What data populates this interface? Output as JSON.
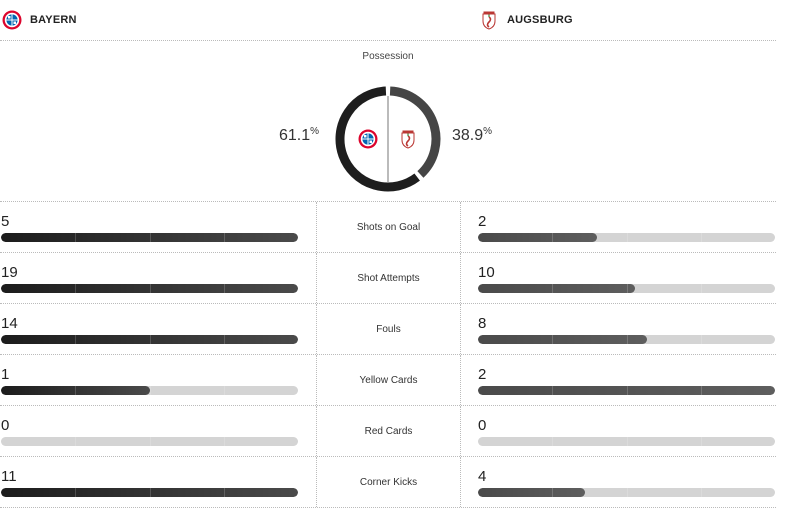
{
  "header": {
    "home": {
      "name": "BAYERN",
      "crest": "bayern-crest-icon"
    },
    "away": {
      "name": "AUGSBURG",
      "crest": "augsburg-crest-icon"
    }
  },
  "possession": {
    "title": "Possession",
    "home_value": "61.1",
    "away_value": "38.9",
    "unit": "%",
    "home_fraction": 0.611,
    "away_fraction": 0.389,
    "home_color": "#1e1e1e",
    "away_color": "#454545"
  },
  "stats": [
    {
      "label": "Shots on Goal",
      "home": "5",
      "away": "2",
      "home_fill": 1.0,
      "away_fill": 0.4
    },
    {
      "label": "Shot Attempts",
      "home": "19",
      "away": "10",
      "home_fill": 1.0,
      "away_fill": 0.53
    },
    {
      "label": "Fouls",
      "home": "14",
      "away": "8",
      "home_fill": 1.0,
      "away_fill": 0.57
    },
    {
      "label": "Yellow Cards",
      "home": "1",
      "away": "2",
      "home_fill": 0.5,
      "away_fill": 1.0
    },
    {
      "label": "Red Cards",
      "home": "0",
      "away": "0",
      "home_fill": 0.0,
      "away_fill": 0.0
    },
    {
      "label": "Corner Kicks",
      "home": "11",
      "away": "4",
      "home_fill": 1.0,
      "away_fill": 0.36
    }
  ]
}
